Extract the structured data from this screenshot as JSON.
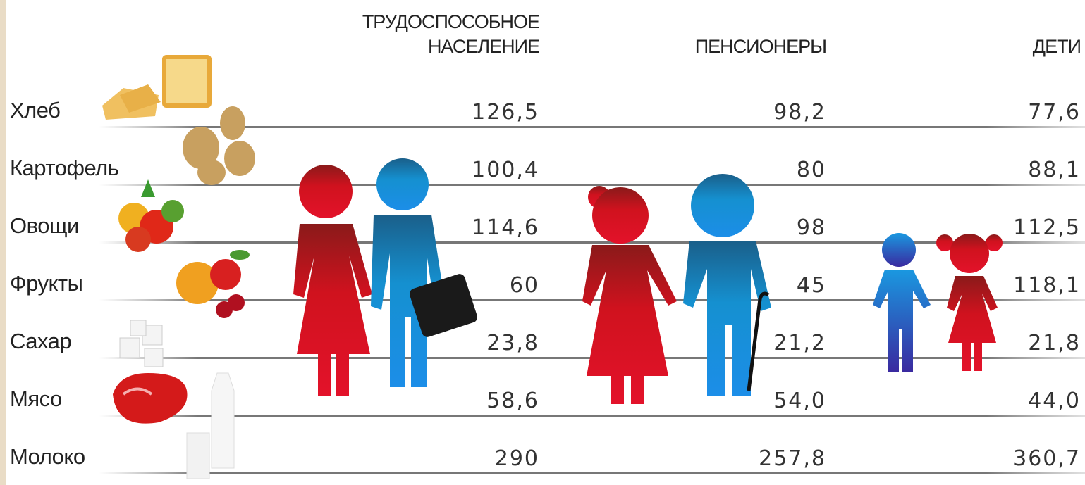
{
  "header": {
    "columns": [
      {
        "lines": [
          "ТРУДОСПОСОБНОЕ",
          "НАСЕЛЕНИЕ"
        ]
      },
      {
        "lines": [
          "ПЕНСИОНЕРЫ"
        ]
      },
      {
        "lines": [
          "ДЕТИ"
        ]
      }
    ]
  },
  "table": {
    "rows": [
      [
        "Хлеб",
        "126,5",
        "98,2",
        "77,6"
      ],
      [
        "Картофель",
        "100,4",
        "80",
        "88,1"
      ],
      [
        "Овощи",
        "114,6",
        "98",
        "112,5"
      ],
      [
        "Фрукты",
        "60",
        "45",
        "118,1"
      ],
      [
        "Сахар",
        "23,8",
        "21,2",
        "21,8"
      ],
      [
        "Мясо",
        "58,6",
        "54,0",
        "44,0"
      ],
      [
        "Молоко",
        "290",
        "257,8",
        "360,7"
      ]
    ]
  }
}
